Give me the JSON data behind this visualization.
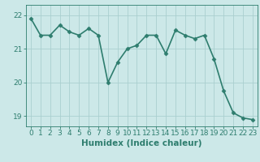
{
  "x": [
    0,
    1,
    2,
    3,
    4,
    5,
    6,
    7,
    8,
    9,
    10,
    11,
    12,
    13,
    14,
    15,
    16,
    17,
    18,
    19,
    20,
    21,
    22,
    23
  ],
  "y": [
    21.9,
    21.4,
    21.4,
    21.7,
    21.5,
    21.4,
    21.6,
    21.4,
    20.0,
    20.6,
    21.0,
    21.1,
    21.4,
    21.4,
    20.85,
    21.55,
    21.4,
    21.3,
    21.4,
    20.7,
    19.75,
    19.1,
    18.95,
    18.9
  ],
  "line_color": "#2e7d6e",
  "marker": "D",
  "marker_size": 2.5,
  "bg_color": "#cce8e8",
  "grid_color": "#aacfcf",
  "xlabel": "Humidex (Indice chaleur)",
  "ylim": [
    18.7,
    22.3
  ],
  "yticks": [
    19,
    20,
    21,
    22
  ],
  "xticks": [
    0,
    1,
    2,
    3,
    4,
    5,
    6,
    7,
    8,
    9,
    10,
    11,
    12,
    13,
    14,
    15,
    16,
    17,
    18,
    19,
    20,
    21,
    22,
    23
  ],
  "xlabel_fontsize": 7.5,
  "tick_fontsize": 6.5,
  "line_width": 1.2
}
